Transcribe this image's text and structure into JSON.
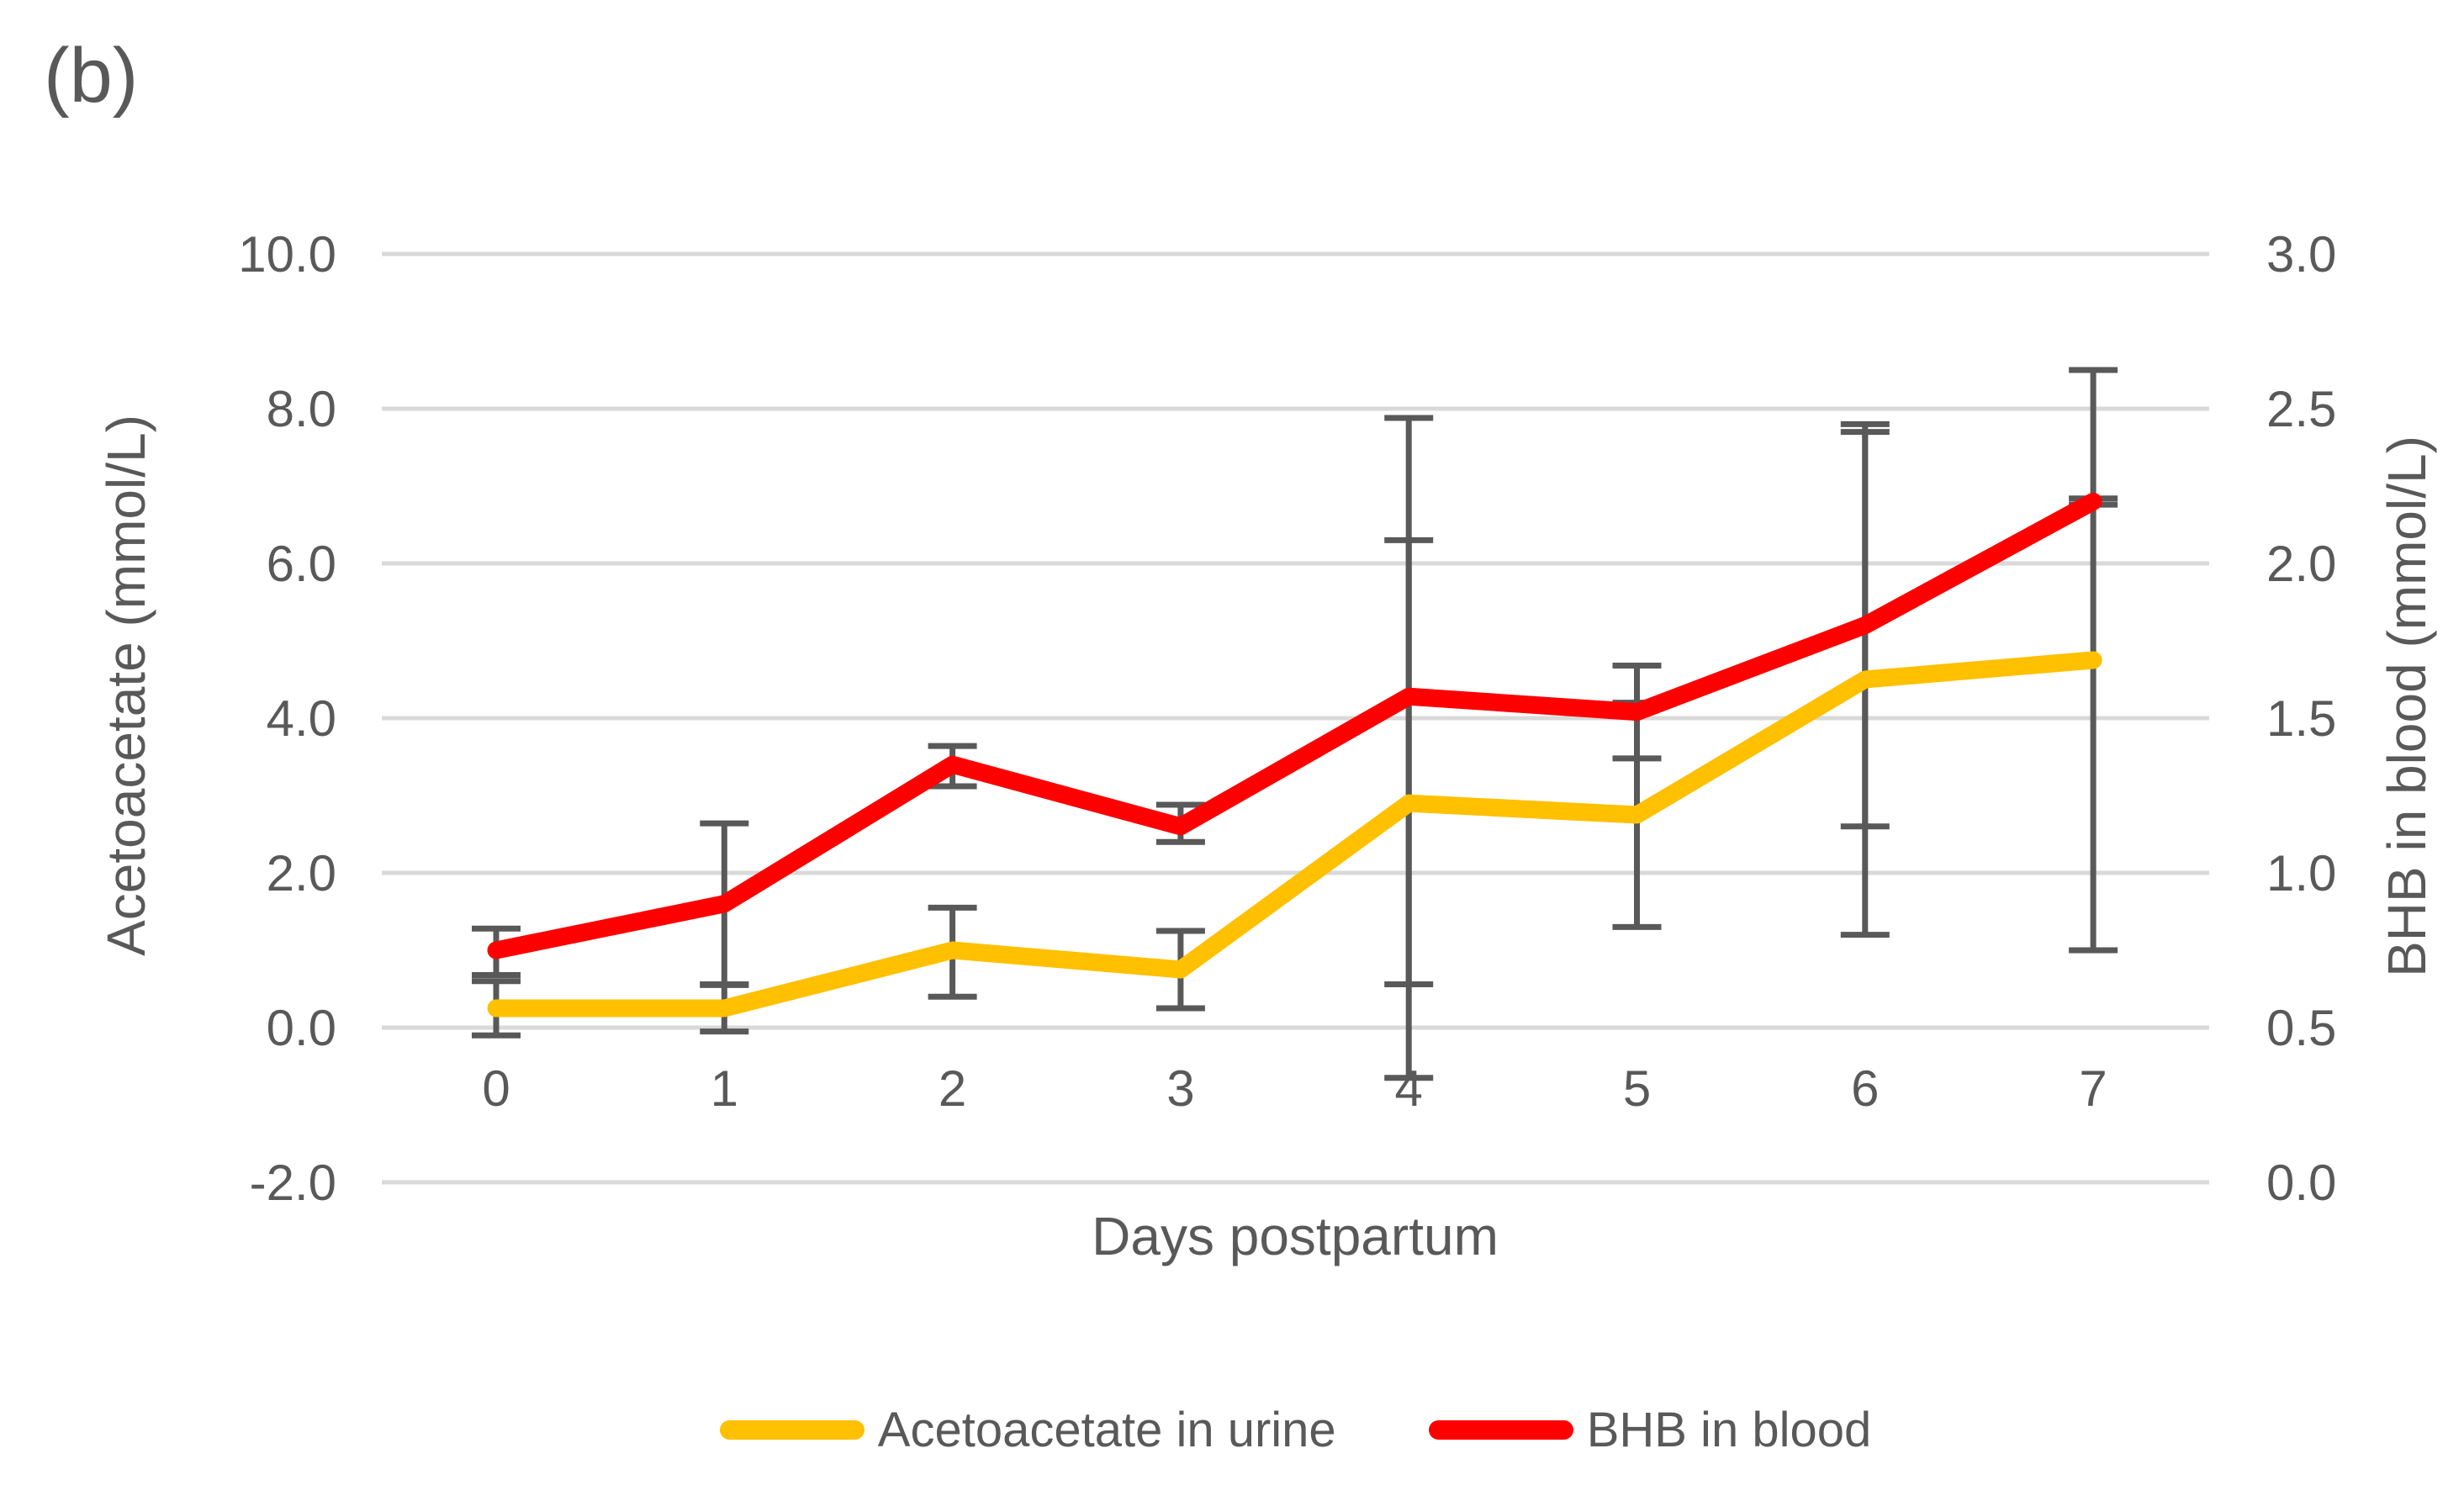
{
  "panel_label": "(b)",
  "colors": {
    "acetoacetate": "#FFC000",
    "bhb": "#FF0000",
    "gridline": "#D9D9D9",
    "text": "#595959",
    "error_bar": "#595959"
  },
  "chart_data": {
    "type": "line",
    "x_label": "Days postpartum",
    "x_ticks": [
      "0",
      "1",
      "2",
      "3",
      "4",
      "5",
      "6",
      "7"
    ],
    "left_axis": {
      "title": "Acetoacetate (mmol/L)",
      "min": -2.0,
      "max": 10.0,
      "step": 2.0,
      "ticks": [
        "10.0",
        "8.0",
        "6.0",
        "4.0",
        "2.0",
        "0.0",
        "-2.0"
      ]
    },
    "right_axis": {
      "title": "BHB in blood (mmol/L)",
      "min": 0.0,
      "max": 3.0,
      "step": 0.5,
      "ticks": [
        "3.0",
        "2.5",
        "2.0",
        "1.5",
        "1.0",
        "0.5",
        "0.0"
      ]
    },
    "grid": true,
    "legend_position": "bottom",
    "series": [
      {
        "name": "Acetoacetate in urine",
        "axis": "left",
        "color": "#FFC000",
        "values": [
          0.25,
          0.25,
          1.0,
          0.75,
          2.9,
          2.75,
          4.5,
          4.75
        ],
        "error_low": [
          -0.1,
          -0.05,
          0.4,
          0.25,
          -0.65,
          1.3,
          1.2,
          1.0
        ],
        "error_high": [
          0.6,
          0.55,
          1.55,
          1.25,
          6.3,
          4.2,
          7.7,
          8.5
        ]
      },
      {
        "name": "BHB in blood",
        "axis": "right",
        "color": "#FF0000",
        "values": [
          0.75,
          0.9,
          1.35,
          1.15,
          1.57,
          1.52,
          1.8,
          2.2
        ],
        "error_low": [
          0.67,
          0.64,
          1.28,
          1.1,
          0.64,
          1.37,
          1.15,
          2.19
        ],
        "error_high": [
          0.82,
          1.16,
          1.41,
          1.22,
          2.47,
          1.67,
          2.45,
          2.21
        ]
      }
    ],
    "legend": [
      {
        "label": "Acetoacetate in urine",
        "color": "#FFC000"
      },
      {
        "label": "BHB in blood",
        "color": "#FF0000"
      }
    ]
  }
}
